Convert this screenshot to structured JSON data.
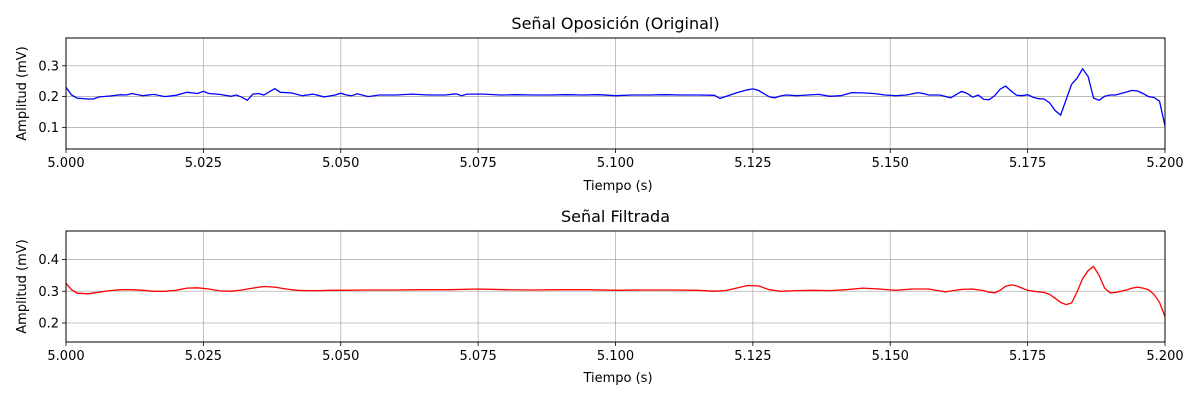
{
  "chart_data": [
    {
      "type": "line",
      "title": "Señal Oposición (Original)",
      "xlabel": "Tiempo (s)",
      "ylabel": "Amplitud (mV)",
      "xlim": [
        5.0,
        5.2
      ],
      "ylim": [
        0.03,
        0.39
      ],
      "xticks": [
        "5.000",
        "5.025",
        "5.050",
        "5.075",
        "5.100",
        "5.125",
        "5.150",
        "5.175",
        "5.200"
      ],
      "yticks": [
        "0.1",
        "0.2",
        "0.3"
      ],
      "grid": true,
      "color": "#0000ff",
      "x": [
        5.0,
        5.001,
        5.002,
        5.004,
        5.005,
        5.006,
        5.008,
        5.01,
        5.011,
        5.012,
        5.014,
        5.016,
        5.018,
        5.02,
        5.022,
        5.024,
        5.025,
        5.026,
        5.028,
        5.03,
        5.031,
        5.032,
        5.033,
        5.034,
        5.035,
        5.036,
        5.038,
        5.039,
        5.041,
        5.043,
        5.045,
        5.047,
        5.049,
        5.05,
        5.051,
        5.052,
        5.053,
        5.055,
        5.057,
        5.06,
        5.063,
        5.066,
        5.069,
        5.071,
        5.072,
        5.073,
        5.076,
        5.079,
        5.082,
        5.085,
        5.088,
        5.091,
        5.094,
        5.097,
        5.1,
        5.103,
        5.106,
        5.109,
        5.112,
        5.115,
        5.118,
        5.119,
        5.12,
        5.122,
        5.124,
        5.125,
        5.126,
        5.128,
        5.129,
        5.13,
        5.131,
        5.133,
        5.135,
        5.137,
        5.139,
        5.141,
        5.143,
        5.145,
        5.147,
        5.149,
        5.151,
        5.153,
        5.155,
        5.156,
        5.157,
        5.159,
        5.161,
        5.163,
        5.164,
        5.165,
        5.166,
        5.167,
        5.168,
        5.169,
        5.17,
        5.171,
        5.172,
        5.173,
        5.174,
        5.175,
        5.176,
        5.177,
        5.178,
        5.179,
        5.18,
        5.181,
        5.182,
        5.183,
        5.184,
        5.185,
        5.186,
        5.187,
        5.188,
        5.189,
        5.19,
        5.191,
        5.193,
        5.194,
        5.195,
        5.196,
        5.197,
        5.198,
        5.199,
        5.2
      ],
      "y": [
        0.23,
        0.205,
        0.195,
        0.192,
        0.192,
        0.199,
        0.202,
        0.206,
        0.205,
        0.21,
        0.203,
        0.207,
        0.2,
        0.204,
        0.214,
        0.21,
        0.217,
        0.21,
        0.207,
        0.201,
        0.205,
        0.198,
        0.188,
        0.208,
        0.21,
        0.205,
        0.226,
        0.214,
        0.212,
        0.203,
        0.208,
        0.199,
        0.205,
        0.211,
        0.205,
        0.203,
        0.209,
        0.2,
        0.205,
        0.205,
        0.208,
        0.205,
        0.205,
        0.209,
        0.203,
        0.208,
        0.208,
        0.205,
        0.206,
        0.205,
        0.205,
        0.206,
        0.205,
        0.206,
        0.203,
        0.205,
        0.205,
        0.206,
        0.205,
        0.205,
        0.204,
        0.194,
        0.2,
        0.212,
        0.222,
        0.225,
        0.22,
        0.199,
        0.196,
        0.202,
        0.205,
        0.203,
        0.205,
        0.207,
        0.201,
        0.203,
        0.213,
        0.212,
        0.21,
        0.205,
        0.203,
        0.205,
        0.213,
        0.21,
        0.205,
        0.205,
        0.196,
        0.217,
        0.21,
        0.198,
        0.205,
        0.191,
        0.19,
        0.203,
        0.224,
        0.234,
        0.218,
        0.204,
        0.203,
        0.206,
        0.198,
        0.193,
        0.192,
        0.18,
        0.155,
        0.14,
        0.19,
        0.24,
        0.26,
        0.29,
        0.265,
        0.195,
        0.188,
        0.201,
        0.205,
        0.205,
        0.215,
        0.22,
        0.218,
        0.21,
        0.2,
        0.197,
        0.185,
        0.105
      ]
    },
    {
      "type": "line",
      "title": "Señal Filtrada",
      "xlabel": "Tiempo (s)",
      "ylabel": "Amplitud (mV)",
      "xlim": [
        5.0,
        5.2
      ],
      "ylim": [
        0.14,
        0.49
      ],
      "xticks": [
        "5.000",
        "5.025",
        "5.050",
        "5.075",
        "5.100",
        "5.125",
        "5.150",
        "5.175",
        "5.200"
      ],
      "yticks": [
        "0.2",
        "0.3",
        "0.4"
      ],
      "grid": true,
      "color": "#ff0000",
      "x": [
        5.0,
        5.001,
        5.002,
        5.004,
        5.006,
        5.008,
        5.01,
        5.012,
        5.014,
        5.016,
        5.018,
        5.02,
        5.022,
        5.024,
        5.026,
        5.028,
        5.03,
        5.032,
        5.034,
        5.036,
        5.038,
        5.04,
        5.042,
        5.044,
        5.046,
        5.048,
        5.05,
        5.055,
        5.06,
        5.065,
        5.07,
        5.075,
        5.08,
        5.085,
        5.09,
        5.095,
        5.1,
        5.105,
        5.11,
        5.115,
        5.118,
        5.12,
        5.122,
        5.124,
        5.126,
        5.128,
        5.13,
        5.133,
        5.136,
        5.139,
        5.142,
        5.145,
        5.148,
        5.151,
        5.154,
        5.157,
        5.16,
        5.163,
        5.165,
        5.167,
        5.168,
        5.169,
        5.17,
        5.171,
        5.172,
        5.173,
        5.174,
        5.175,
        5.176,
        5.177,
        5.178,
        5.179,
        5.18,
        5.181,
        5.182,
        5.183,
        5.184,
        5.185,
        5.186,
        5.187,
        5.188,
        5.189,
        5.19,
        5.191,
        5.192,
        5.193,
        5.194,
        5.195,
        5.196,
        5.197,
        5.198,
        5.199,
        5.2
      ],
      "y": [
        0.325,
        0.305,
        0.294,
        0.292,
        0.297,
        0.302,
        0.305,
        0.305,
        0.303,
        0.3,
        0.3,
        0.303,
        0.31,
        0.311,
        0.307,
        0.301,
        0.3,
        0.304,
        0.31,
        0.315,
        0.313,
        0.307,
        0.303,
        0.302,
        0.302,
        0.303,
        0.303,
        0.304,
        0.304,
        0.305,
        0.305,
        0.307,
        0.305,
        0.304,
        0.305,
        0.305,
        0.303,
        0.304,
        0.304,
        0.303,
        0.3,
        0.302,
        0.31,
        0.318,
        0.317,
        0.305,
        0.3,
        0.302,
        0.303,
        0.302,
        0.305,
        0.31,
        0.307,
        0.303,
        0.307,
        0.307,
        0.298,
        0.306,
        0.307,
        0.302,
        0.297,
        0.295,
        0.303,
        0.316,
        0.32,
        0.317,
        0.31,
        0.303,
        0.3,
        0.298,
        0.296,
        0.29,
        0.278,
        0.265,
        0.258,
        0.263,
        0.298,
        0.34,
        0.365,
        0.378,
        0.35,
        0.31,
        0.295,
        0.296,
        0.3,
        0.304,
        0.31,
        0.313,
        0.31,
        0.305,
        0.29,
        0.265,
        0.22
      ]
    }
  ]
}
